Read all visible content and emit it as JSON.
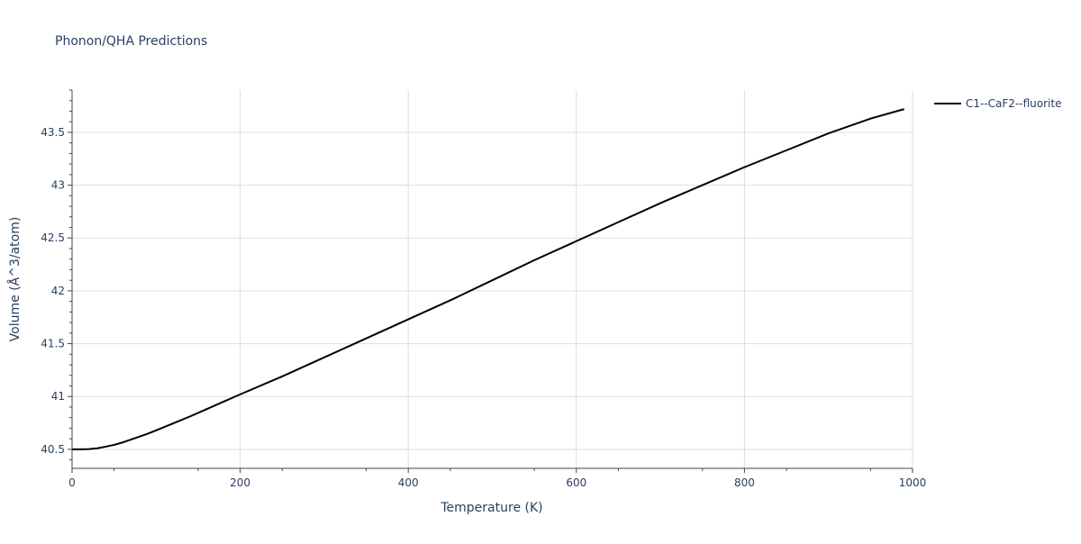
{
  "chart_data": {
    "type": "line",
    "title": "Phonon/QHA Predictions",
    "xlabel": "Temperature (K)",
    "ylabel": "Volume (Å^3/atom)",
    "xlim": [
      0,
      1000
    ],
    "ylim": [
      40.32,
      43.9
    ],
    "xticks": [
      0,
      200,
      400,
      600,
      800,
      1000
    ],
    "xtick_labels": [
      "0",
      "200",
      "400",
      "600",
      "800",
      "1000"
    ],
    "yticks": [
      40.5,
      41,
      41.5,
      42,
      42.5,
      43,
      43.5
    ],
    "ytick_labels": [
      "40.5",
      "41",
      "41.5",
      "42",
      "42.5",
      "43",
      "43.5"
    ],
    "grid": true,
    "legend_position": "top-right",
    "series": [
      {
        "name": "C1--CaF2--fluorite",
        "color": "#000000",
        "x": [
          0,
          10,
          20,
          30,
          40,
          50,
          60,
          70,
          80,
          90,
          100,
          120,
          140,
          160,
          180,
          200,
          250,
          300,
          350,
          400,
          450,
          500,
          550,
          600,
          650,
          700,
          750,
          800,
          850,
          900,
          950,
          990
        ],
        "y": [
          40.5,
          40.5,
          40.502,
          40.51,
          40.525,
          40.542,
          40.565,
          40.592,
          40.62,
          40.648,
          40.68,
          40.745,
          40.81,
          40.88,
          40.95,
          41.02,
          41.19,
          41.37,
          41.55,
          41.73,
          41.91,
          42.1,
          42.29,
          42.47,
          42.65,
          42.83,
          43.0,
          43.17,
          43.33,
          43.49,
          43.63,
          43.72
        ]
      }
    ]
  }
}
